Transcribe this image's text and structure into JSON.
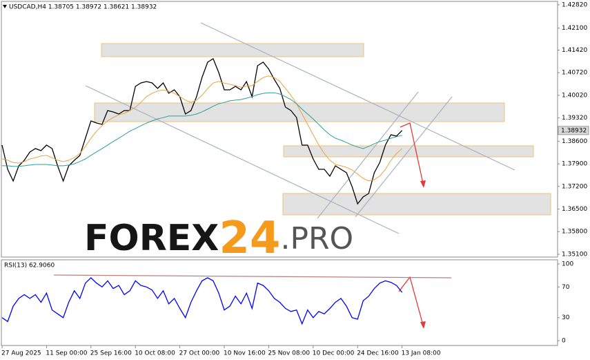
{
  "chart_data": [
    {
      "type": "line",
      "title": "USDCAD,H4  1.38705 1.38972 1.38621 1.38932",
      "watermark": [
        "FOREX",
        "24",
        ".PRO"
      ],
      "categories": [
        "27 Aug 2025",
        null,
        null,
        null,
        null,
        null,
        null,
        null,
        "11 Sep 00:00",
        null,
        null,
        null,
        null,
        null,
        null,
        null,
        "25 Sep 16:00",
        null,
        null,
        null,
        null,
        null,
        null,
        null,
        "10 Oct 08:00",
        null,
        null,
        null,
        null,
        null,
        null,
        null,
        "27 Oct 00:00",
        null,
        null,
        null,
        null,
        null,
        null,
        null,
        "10 Nov 16:00",
        null,
        null,
        null,
        null,
        null,
        null,
        null,
        "25 Nov 08:00",
        null,
        null,
        null,
        null,
        null,
        null,
        null,
        "10 Dec 00:00",
        null,
        null,
        null,
        null,
        null,
        null,
        null,
        "24 Dec 16:00",
        null,
        null,
        null,
        null,
        null,
        null,
        null,
        "13 Jan 08:00"
      ],
      "series": [
        {
          "color": "#000000",
          "values": [
            1.38479,
            1.3773,
            1.37367,
            1.37837,
            1.38008,
            1.38265,
            1.38372,
            1.38308,
            1.38479,
            1.38372,
            1.37837,
            1.37367,
            1.37837,
            1.38008,
            1.38158,
            1.38693,
            1.39227,
            1.39163,
            1.3912,
            1.39548,
            1.39505,
            1.39441,
            1.39548,
            1.39548,
            1.40296,
            1.40403,
            1.40446,
            1.40403,
            1.40232,
            1.40403,
            1.40083,
            1.4019,
            1.39976,
            1.39441,
            1.39548,
            1.39976,
            1.40574,
            1.41045,
            1.41152,
            1.40724,
            1.4019,
            1.4019,
            1.40296,
            1.4019,
            1.40446,
            1.39976,
            1.40938,
            1.41045,
            1.40831,
            1.4051,
            1.40232,
            1.39655,
            1.39548,
            1.39334,
            1.38479,
            1.38479,
            1.38051,
            1.3773,
            1.3773,
            1.37516,
            1.37837,
            1.3773,
            1.37623,
            1.37196,
            1.36661,
            1.36875,
            1.36982,
            1.37623,
            1.37944,
            1.38479,
            1.38799,
            1.38757,
            1.38932
          ]
        },
        {
          "color": "#e8a33d",
          "values": [
            1.3805,
            1.3801,
            1.3794,
            1.3792,
            1.3797,
            1.3805,
            1.3809,
            1.3814,
            1.3816,
            1.3809,
            1.3801,
            1.3797,
            1.3801,
            1.3809,
            1.3822,
            1.3844,
            1.3869,
            1.3891,
            1.3908,
            1.3923,
            1.3933,
            1.3942,
            1.3946,
            1.3955,
            1.3965,
            1.398,
            1.3998,
            1.4008,
            1.4015,
            1.4019,
            1.4015,
            1.4008,
            1.3998,
            1.3987,
            1.398,
            1.3987,
            1.4002,
            1.4023,
            1.404,
            1.4045,
            1.404,
            1.4036,
            1.4032,
            1.4027,
            1.403,
            1.4032,
            1.4045,
            1.4057,
            1.4062,
            1.4057,
            1.4045,
            1.4023,
            1.4002,
            1.3976,
            1.3944,
            1.3912,
            1.388,
            1.3848,
            1.3822,
            1.3801,
            1.3788,
            1.3784,
            1.3779,
            1.3771,
            1.3758,
            1.3745,
            1.3737,
            1.3741,
            1.3752,
            1.3773,
            1.3801,
            1.3822,
            1.3837
          ]
        },
        {
          "color": "#2aa198",
          "values": [
            1.3784,
            1.3784,
            1.3782,
            1.3782,
            1.3784,
            1.3786,
            1.3788,
            1.3788,
            1.3788,
            1.3786,
            1.3784,
            1.3784,
            1.3786,
            1.379,
            1.3797,
            1.3805,
            1.3816,
            1.3827,
            1.3837,
            1.3848,
            1.3859,
            1.3869,
            1.388,
            1.3891,
            1.3899,
            1.3908,
            1.3916,
            1.3923,
            1.3929,
            1.3933,
            1.3938,
            1.3938,
            1.3938,
            1.3938,
            1.394,
            1.3944,
            1.3951,
            1.3959,
            1.3968,
            1.3976,
            1.398,
            1.3985,
            1.3987,
            1.3989,
            1.3993,
            1.3998,
            1.4004,
            1.4008,
            1.401,
            1.401,
            1.4006,
            1.3998,
            1.3989,
            1.3976,
            1.3959,
            1.3944,
            1.3929,
            1.3912,
            1.3895,
            1.388,
            1.3869,
            1.3863,
            1.3856,
            1.3848,
            1.3842,
            1.3837,
            1.3844,
            1.3852,
            1.3859,
            1.3863,
            1.3869,
            1.3874,
            1.3878
          ]
        }
      ],
      "last_price": 1.38932,
      "ylim": [
        1.35014,
        1.42927
      ],
      "yticks": [
        {
          "value": 1.4282,
          "label": "1.42820"
        },
        {
          "value": 1.421,
          "label": "1.42100"
        },
        {
          "value": 1.4142,
          "label": "1.41420"
        },
        {
          "value": 1.4072,
          "label": "1.40720"
        },
        {
          "value": 1.4002,
          "label": "1.40020"
        },
        {
          "value": 1.3932,
          "label": "1.39320"
        },
        {
          "value": 1.386,
          "label": "1.38600"
        },
        {
          "value": 1.379,
          "label": "1.37900"
        },
        {
          "value": 1.372,
          "label": "1.37200"
        },
        {
          "value": 1.365,
          "label": "1.36500"
        },
        {
          "value": 1.358,
          "label": "1.35800"
        },
        {
          "value": 1.351,
          "label": "1.35100"
        }
      ]
    },
    {
      "type": "line",
      "title": "RSI(13) 62.9060",
      "series": [
        {
          "color": "#0000ff",
          "values": [
            30,
            25,
            45,
            55,
            60,
            55,
            60,
            50,
            62,
            40,
            35,
            30,
            50,
            65,
            55,
            75,
            82,
            75,
            70,
            78,
            68,
            72,
            60,
            65,
            78,
            72,
            70,
            66,
            55,
            65,
            48,
            55,
            42,
            30,
            50,
            65,
            78,
            82,
            78,
            62,
            40,
            45,
            58,
            48,
            62,
            42,
            75,
            72,
            65,
            55,
            50,
            42,
            38,
            40,
            22,
            40,
            30,
            38,
            35,
            42,
            50,
            55,
            45,
            30,
            28,
            52,
            58,
            68,
            75,
            78,
            76,
            72,
            63
          ]
        }
      ],
      "ylim": [
        -6.3,
        105.4
      ],
      "yticks": [
        100,
        70,
        30,
        0
      ]
    }
  ]
}
